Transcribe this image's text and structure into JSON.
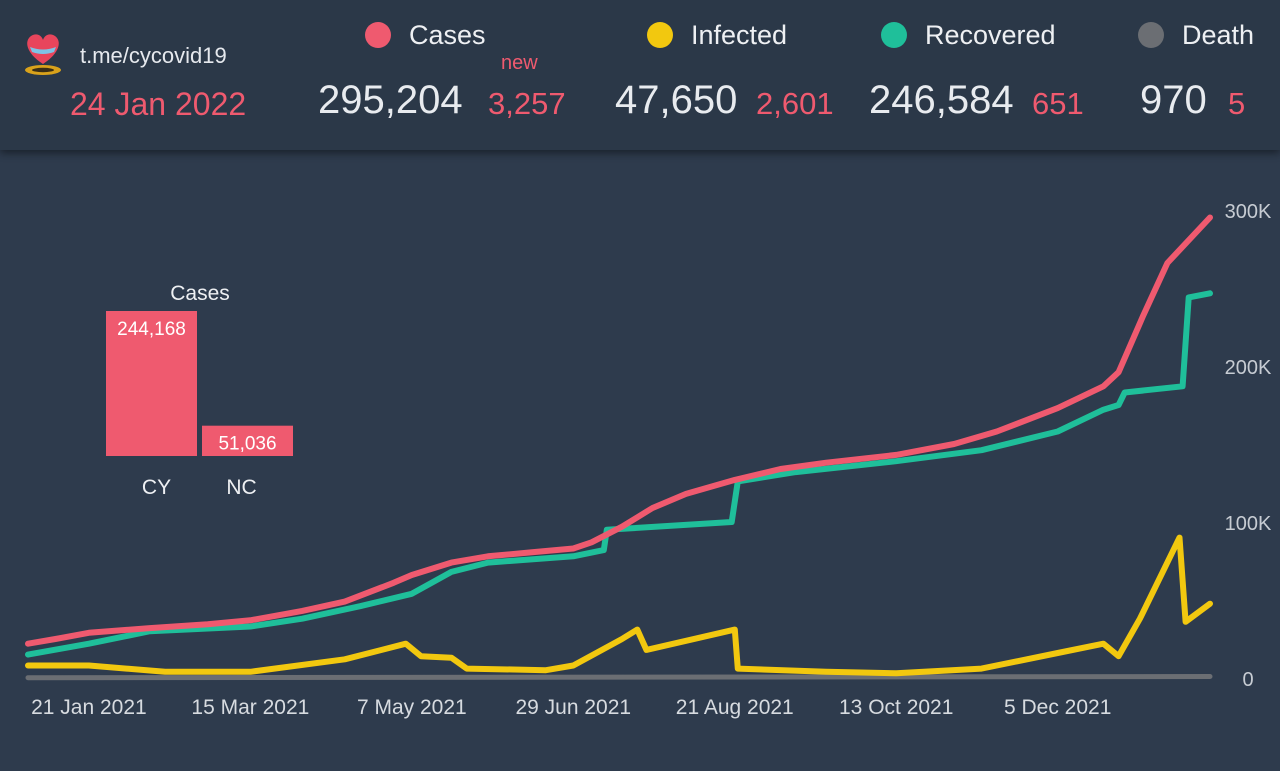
{
  "header": {
    "channel": "t.me/cycovid19",
    "date": "24 Jan 2022",
    "new_label": "new",
    "stats": [
      {
        "label": "Cases",
        "color": "#ef5a6f",
        "total": "295,204",
        "new": "3,257"
      },
      {
        "label": "Infected",
        "color": "#f2c80f",
        "total": "47,650",
        "new": "2,601"
      },
      {
        "label": "Recovered",
        "color": "#1fbf9a",
        "total": "246,584",
        "new": "651"
      },
      {
        "label": "Death",
        "color": "#6b6e73",
        "total": "970",
        "new": "5"
      }
    ]
  },
  "chart_data": [
    {
      "type": "line",
      "title": "",
      "xlabel": "",
      "ylabel": "",
      "x_range": [
        "2021-01-01",
        "2022-01-24"
      ],
      "ylim": [
        0,
        300000
      ],
      "y_ticks": [
        0,
        100000,
        200000,
        300000
      ],
      "y_tick_labels": [
        "0",
        "100K",
        "200K",
        "300K"
      ],
      "x_tick_labels": [
        "21 Jan 2021",
        "15 Mar 2021",
        "7 May 2021",
        "29 Jun 2021",
        "21 Aug 2021",
        "13 Oct 2021",
        "5 Dec 2021"
      ],
      "x_ticks": [
        "2021-01-21",
        "2021-03-15",
        "2021-05-07",
        "2021-06-29",
        "2021-08-21",
        "2021-10-13",
        "2021-12-05"
      ],
      "grid": false,
      "series": [
        {
          "name": "Cases",
          "color": "#ef5a6f",
          "points": [
            [
              "2021-01-01",
              22000
            ],
            [
              "2021-01-10",
              25000
            ],
            [
              "2021-01-21",
              29000
            ],
            [
              "2021-02-10",
              32000
            ],
            [
              "2021-03-01",
              34500
            ],
            [
              "2021-03-15",
              37000
            ],
            [
              "2021-04-01",
              43000
            ],
            [
              "2021-04-15",
              49000
            ],
            [
              "2021-05-01",
              61000
            ],
            [
              "2021-05-07",
              66000
            ],
            [
              "2021-05-20",
              74000
            ],
            [
              "2021-06-01",
              78000
            ],
            [
              "2021-06-15",
              80500
            ],
            [
              "2021-06-29",
              83000
            ],
            [
              "2021-07-05",
              87000
            ],
            [
              "2021-07-15",
              97000
            ],
            [
              "2021-07-25",
              109000
            ],
            [
              "2021-08-05",
              118000
            ],
            [
              "2021-08-21",
              127000
            ],
            [
              "2021-09-05",
              134000
            ],
            [
              "2021-09-20",
              138000
            ],
            [
              "2021-10-13",
              143000
            ],
            [
              "2021-11-01",
              150000
            ],
            [
              "2021-11-15",
              158000
            ],
            [
              "2021-12-05",
              173000
            ],
            [
              "2021-12-20",
              187000
            ],
            [
              "2021-12-25",
              196000
            ],
            [
              "2022-01-02",
              232000
            ],
            [
              "2022-01-10",
              266000
            ],
            [
              "2022-01-24",
              295204
            ]
          ]
        },
        {
          "name": "Recovered",
          "color": "#1fbf9a",
          "points": [
            [
              "2021-01-01",
              15000
            ],
            [
              "2021-01-21",
              22000
            ],
            [
              "2021-02-10",
              30000
            ],
            [
              "2021-03-15",
              33000
            ],
            [
              "2021-04-01",
              38000
            ],
            [
              "2021-04-20",
              46000
            ],
            [
              "2021-05-07",
              54000
            ],
            [
              "2021-05-20",
              68000
            ],
            [
              "2021-06-01",
              74000
            ],
            [
              "2021-06-29",
              78000
            ],
            [
              "2021-07-09",
              82000
            ],
            [
              "2021-07-10",
              95000
            ],
            [
              "2021-08-20",
              100000
            ],
            [
              "2021-08-22",
              126000
            ],
            [
              "2021-09-10",
              132000
            ],
            [
              "2021-10-13",
              139000
            ],
            [
              "2021-11-10",
              146000
            ],
            [
              "2021-12-05",
              158000
            ],
            [
              "2021-12-20",
              172000
            ],
            [
              "2021-12-25",
              175000
            ],
            [
              "2021-12-27",
              183000
            ],
            [
              "2022-01-15",
              187000
            ],
            [
              "2022-01-17",
              244000
            ],
            [
              "2022-01-24",
              246584
            ]
          ]
        },
        {
          "name": "Infected",
          "color": "#f2c80f",
          "points": [
            [
              "2021-01-01",
              8000
            ],
            [
              "2021-01-21",
              8000
            ],
            [
              "2021-02-15",
              4000
            ],
            [
              "2021-03-15",
              4000
            ],
            [
              "2021-04-15",
              12000
            ],
            [
              "2021-05-05",
              22000
            ],
            [
              "2021-05-10",
              14000
            ],
            [
              "2021-05-20",
              13000
            ],
            [
              "2021-05-25",
              6000
            ],
            [
              "2021-06-20",
              5000
            ],
            [
              "2021-06-29",
              8000
            ],
            [
              "2021-07-15",
              25000
            ],
            [
              "2021-07-20",
              31000
            ],
            [
              "2021-07-23",
              18000
            ],
            [
              "2021-08-21",
              31000
            ],
            [
              "2021-08-22",
              6000
            ],
            [
              "2021-09-20",
              4000
            ],
            [
              "2021-10-13",
              3000
            ],
            [
              "2021-11-10",
              6000
            ],
            [
              "2021-12-05",
              16000
            ],
            [
              "2021-12-20",
              22000
            ],
            [
              "2021-12-25",
              14000
            ],
            [
              "2022-01-01",
              38000
            ],
            [
              "2022-01-14",
              90000
            ],
            [
              "2022-01-16",
              36000
            ],
            [
              "2022-01-24",
              47650
            ]
          ]
        },
        {
          "name": "Death",
          "color": "#6b6e73",
          "points": [
            [
              "2021-01-01",
              200
            ],
            [
              "2022-01-24",
              970
            ]
          ]
        }
      ]
    },
    {
      "type": "bar",
      "title": "Cases",
      "categories": [
        "CY",
        "NC"
      ],
      "values": [
        244168,
        51036
      ],
      "value_labels": [
        "244,168",
        "51,036"
      ],
      "color": "#ef5a6f"
    }
  ]
}
